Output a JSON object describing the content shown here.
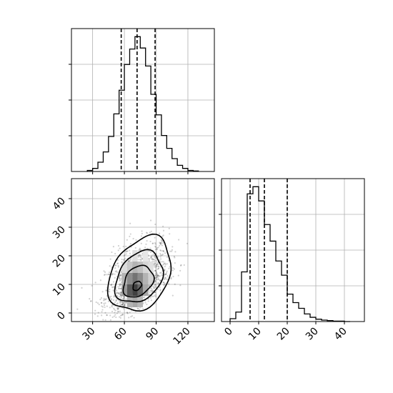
{
  "chart_data": [
    {
      "panel": "marginal-param1",
      "type": "histogram",
      "grid": true,
      "xlim": [
        10,
        145
      ],
      "bin_edges": [
        25,
        30,
        35,
        40,
        45,
        50,
        55,
        60,
        65,
        70,
        75,
        80,
        85,
        90,
        95,
        100,
        105,
        110,
        115,
        120,
        125,
        130
      ],
      "counts": [
        2,
        6,
        18,
        38,
        68,
        112,
        158,
        208,
        238,
        262,
        240,
        205,
        150,
        110,
        70,
        45,
        25,
        12,
        6,
        2,
        1
      ],
      "quantiles": [
        57,
        72,
        89
      ],
      "yticks_count": 3
    },
    {
      "panel": "marginal-param2",
      "type": "histogram",
      "grid": true,
      "xlim": [
        -3,
        47
      ],
      "xticks": [
        0,
        10,
        20,
        30,
        40
      ],
      "bin_edges": [
        0,
        2,
        4,
        6,
        8,
        10,
        12,
        14,
        16,
        18,
        20,
        22,
        24,
        26,
        28,
        30,
        32,
        34,
        36,
        38,
        40,
        42
      ],
      "counts": [
        6,
        20,
        105,
        270,
        285,
        255,
        205,
        170,
        128,
        98,
        58,
        40,
        28,
        16,
        9,
        5,
        3,
        2,
        1,
        1,
        0
      ],
      "quantiles": [
        7,
        12,
        20
      ],
      "yticks_count": 3
    },
    {
      "panel": "joint-2d",
      "type": "scatter-density",
      "grid": true,
      "xlim": [
        10,
        145
      ],
      "ylim": [
        -3,
        47
      ],
      "xticks": [
        30,
        60,
        90,
        120
      ],
      "yticks": [
        0,
        10,
        20,
        30,
        40
      ],
      "center": [
        72,
        10
      ],
      "spread": [
        15,
        6
      ],
      "density_cells": [
        {
          "x": 70,
          "y": 8,
          "shade": 0.75
        },
        {
          "x": 65,
          "y": 8,
          "shade": 0.65
        },
        {
          "x": 75,
          "y": 8,
          "shade": 0.6
        },
        {
          "x": 70,
          "y": 12,
          "shade": 0.55
        },
        {
          "x": 75,
          "y": 12,
          "shade": 0.45
        },
        {
          "x": 65,
          "y": 12,
          "shade": 0.45
        },
        {
          "x": 80,
          "y": 12,
          "shade": 0.3
        },
        {
          "x": 80,
          "y": 8,
          "shade": 0.35
        },
        {
          "x": 60,
          "y": 8,
          "shade": 0.4
        },
        {
          "x": 60,
          "y": 12,
          "shade": 0.3
        },
        {
          "x": 70,
          "y": 16,
          "shade": 0.3
        },
        {
          "x": 75,
          "y": 16,
          "shade": 0.25
        },
        {
          "x": 65,
          "y": 16,
          "shade": 0.22
        },
        {
          "x": 70,
          "y": 4,
          "shade": 0.35
        },
        {
          "x": 65,
          "y": 4,
          "shade": 0.3
        },
        {
          "x": 75,
          "y": 4,
          "shade": 0.28
        },
        {
          "x": 85,
          "y": 12,
          "shade": 0.18
        },
        {
          "x": 80,
          "y": 16,
          "shade": 0.16
        },
        {
          "x": 85,
          "y": 16,
          "shade": 0.12
        },
        {
          "x": 60,
          "y": 16,
          "shade": 0.14
        },
        {
          "x": 80,
          "y": 20,
          "shade": 0.1
        },
        {
          "x": 70,
          "y": 20,
          "shade": 0.12
        }
      ],
      "contours": [
        {
          "level": 1,
          "cx": 72,
          "cy": 9.5,
          "rx": 4,
          "ry": 1.6
        },
        {
          "level": 2,
          "cx": 73,
          "cy": 11,
          "rx": 14,
          "ry": 5.5
        },
        {
          "level": 3,
          "cx": 74,
          "cy": 12.5,
          "rx": 22,
          "ry": 9
        },
        {
          "level": 4,
          "cx": 75,
          "cy": 13.5,
          "rx": 29,
          "ry": 13
        }
      ]
    }
  ]
}
